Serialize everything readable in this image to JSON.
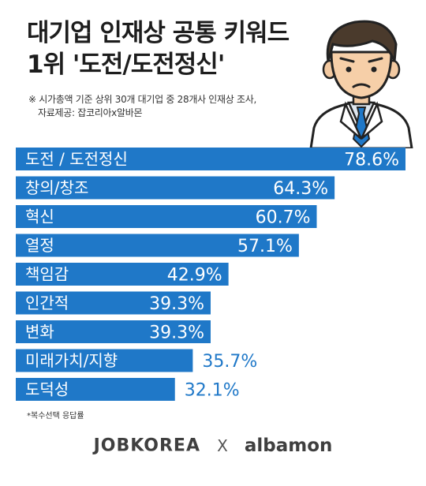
{
  "title": {
    "line1": "대기업 인재상 공통 키워드",
    "line2": "1위  '도전/도전정신'"
  },
  "note": {
    "line1": "※ 시가총액 기준 상위 30개 대기업 중 28개사 인재상 조사,",
    "line2": "자료제공: 잡코리아x알바몬"
  },
  "footnote": "*복수선택 응답률",
  "logos": {
    "jobkorea": "JOBKOREA",
    "x": "X",
    "albamon": "albamon"
  },
  "colors": {
    "bar": "#1f78c8",
    "value_text": "#1f78c8",
    "value_text_inside": "#ffffff"
  },
  "chart_data": {
    "type": "bar",
    "orientation": "horizontal",
    "unit": "%",
    "categories": [
      "도전 / 도전정신",
      "창의/창조",
      "혁신",
      "열정",
      "책임감",
      "인간적",
      "변화",
      "미래가치/지향",
      "도덕성"
    ],
    "values": [
      78.6,
      64.3,
      60.7,
      57.1,
      42.9,
      39.3,
      39.3,
      35.7,
      32.1
    ],
    "labels": [
      "78.6%",
      "64.3%",
      "60.7%",
      "57.1%",
      "42.9%",
      "39.3%",
      "39.3%",
      "35.7%",
      "32.1%"
    ],
    "xlim": [
      0,
      78.6
    ]
  }
}
